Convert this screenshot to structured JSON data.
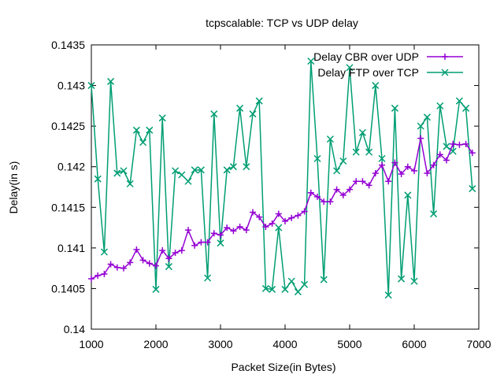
{
  "chart_data": {
    "type": "line",
    "title": "tcpscalable: TCP vs UDP delay",
    "xlabel": "Packet Size(in Bytes)",
    "ylabel": "Delay(in s)",
    "xlim": [
      1000,
      7000
    ],
    "ylim": [
      0.14,
      0.1435
    ],
    "xticks": [
      1000,
      2000,
      3000,
      4000,
      5000,
      6000,
      7000
    ],
    "yticks": [
      0.14,
      0.1405,
      0.141,
      0.1415,
      0.142,
      0.1425,
      0.143,
      0.1435
    ],
    "grid": false,
    "legend_position": "top-right",
    "series": [
      {
        "name": "Delay CBR over UDP",
        "color": "#9400d3",
        "marker": "plus",
        "x": [
          1000,
          1100,
          1200,
          1300,
          1400,
          1500,
          1600,
          1700,
          1800,
          1900,
          2000,
          2100,
          2200,
          2300,
          2400,
          2500,
          2600,
          2700,
          2800,
          2900,
          3000,
          3100,
          3200,
          3300,
          3400,
          3500,
          3600,
          3700,
          3800,
          3900,
          4000,
          4100,
          4200,
          4300,
          4400,
          4500,
          4600,
          4700,
          4800,
          4900,
          5000,
          5100,
          5200,
          5300,
          5400,
          5500,
          5600,
          5700,
          5800,
          5900,
          6000,
          6100,
          6200,
          6300,
          6400,
          6500,
          6600,
          6700,
          6800,
          6900
        ],
        "values": [
          0.14062,
          0.14066,
          0.14068,
          0.1408,
          0.14076,
          0.14075,
          0.14082,
          0.14098,
          0.14085,
          0.14081,
          0.14078,
          0.14097,
          0.14087,
          0.14094,
          0.14097,
          0.14122,
          0.14103,
          0.14107,
          0.14107,
          0.14118,
          0.14116,
          0.14125,
          0.14121,
          0.14126,
          0.14122,
          0.14144,
          0.14138,
          0.14126,
          0.1413,
          0.14142,
          0.14133,
          0.14137,
          0.1414,
          0.14145,
          0.14168,
          0.14163,
          0.14157,
          0.14157,
          0.14172,
          0.14165,
          0.14172,
          0.14182,
          0.14182,
          0.14177,
          0.14192,
          0.14202,
          0.14182,
          0.14205,
          0.14191,
          0.142,
          0.14195,
          0.14235,
          0.14192,
          0.14202,
          0.14215,
          0.14208,
          0.14228,
          0.14227,
          0.14228,
          0.14217
        ]
      },
      {
        "name": "Delay FTP over TCP",
        "color": "#009e73",
        "marker": "cross",
        "x": [
          1000,
          1100,
          1200,
          1300,
          1400,
          1500,
          1600,
          1700,
          1800,
          1900,
          2000,
          2100,
          2200,
          2300,
          2400,
          2500,
          2600,
          2700,
          2800,
          2900,
          3000,
          3100,
          3200,
          3300,
          3400,
          3500,
          3600,
          3700,
          3800,
          3900,
          4000,
          4100,
          4200,
          4300,
          4400,
          4500,
          4600,
          4700,
          4800,
          4900,
          5000,
          5100,
          5200,
          5300,
          5400,
          5500,
          5600,
          5700,
          5800,
          5900,
          6000,
          6100,
          6200,
          6300,
          6400,
          6500,
          6600,
          6700,
          6800,
          6900
        ],
        "values": [
          0.143,
          0.14185,
          0.14095,
          0.14305,
          0.14192,
          0.14195,
          0.14179,
          0.14245,
          0.1423,
          0.14245,
          0.14049,
          0.1426,
          0.14077,
          0.14195,
          0.1419,
          0.14182,
          0.14196,
          0.14196,
          0.14063,
          0.14265,
          0.14106,
          0.14196,
          0.142,
          0.14272,
          0.142,
          0.14265,
          0.14281,
          0.1405,
          0.14049,
          0.14125,
          0.14049,
          0.14059,
          0.14046,
          0.14055,
          0.1433,
          0.1421,
          0.14061,
          0.14234,
          0.14195,
          0.14207,
          0.14322,
          0.14218,
          0.14242,
          0.14218,
          0.143,
          0.1421,
          0.14042,
          0.14272,
          0.14062,
          0.14165,
          0.14059,
          0.1425,
          0.14261,
          0.14142,
          0.14275,
          0.14225,
          0.14219,
          0.14281,
          0.14272,
          0.14173
        ]
      }
    ]
  }
}
